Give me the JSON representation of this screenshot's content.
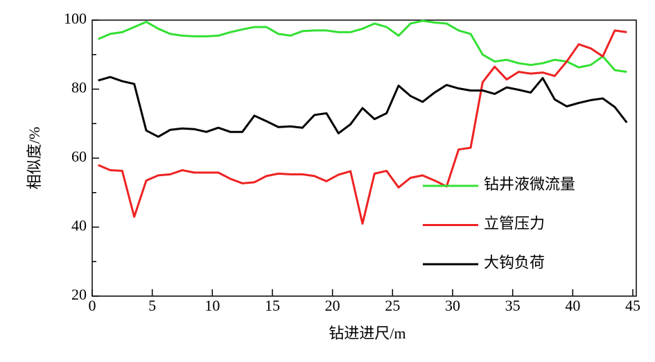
{
  "chart_data": {
    "type": "line",
    "xlabel": "钻进进尺/m",
    "ylabel": "相似度/%",
    "x": [
      0.5,
      1.5,
      2.5,
      3.5,
      4.5,
      5.5,
      6.5,
      7.5,
      8.5,
      9.5,
      10.5,
      11.5,
      12.5,
      13.5,
      14.5,
      15.5,
      16.5,
      17.5,
      18.5,
      19.5,
      20.5,
      21.5,
      22.5,
      23.5,
      24.5,
      25.5,
      26.5,
      27.5,
      28.5,
      29.5,
      30.5,
      31.5,
      32.5,
      33.5,
      34.5,
      35.5,
      36.5,
      37.5,
      38.5,
      39.5,
      40.5,
      41.5,
      42.5,
      43.5,
      44.5
    ],
    "series": [
      {
        "name": "钻井液微流量",
        "color": "#33e033",
        "values": [
          94.5,
          96,
          96.5,
          98,
          99.5,
          97.5,
          96,
          95.5,
          95.3,
          95.3,
          95.5,
          96.5,
          97.3,
          98,
          98,
          96,
          95.5,
          96.8,
          97,
          97,
          96.5,
          96.5,
          97.5,
          99,
          98,
          95.5,
          99,
          99.8,
          99.3,
          99,
          97,
          96,
          90,
          88,
          88.5,
          87.5,
          87,
          87.5,
          88.5,
          88,
          86.3,
          87,
          89.5,
          85.5,
          85
        ]
      },
      {
        "name": "立管压力",
        "color": "#ee2222",
        "values": [
          58,
          56.5,
          56.3,
          43,
          53.5,
          55,
          55.3,
          56.5,
          55.8,
          55.8,
          55.8,
          54,
          52.7,
          53,
          54.8,
          55.5,
          55.3,
          55.3,
          54.8,
          53.3,
          55.2,
          56.2,
          41,
          55.5,
          56.3,
          51.5,
          54.3,
          55,
          53.5,
          51.8,
          62.5,
          63,
          82,
          86.5,
          82.8,
          85,
          84.5,
          84.8,
          83.8,
          88,
          93,
          91.8,
          89.5,
          97,
          96.5
        ]
      },
      {
        "name": "大钩负荷",
        "color": "#000000",
        "values": [
          82.5,
          83.5,
          82.3,
          81.5,
          68,
          66.2,
          68.2,
          68.6,
          68.4,
          67.6,
          68.8,
          67.6,
          67.6,
          72.3,
          70.7,
          69,
          69.2,
          68.8,
          72.5,
          73,
          67.2,
          69.8,
          74.5,
          71.3,
          73,
          81,
          78,
          76.3,
          79,
          81.2,
          80.2,
          79.6,
          79.6,
          78.6,
          80.5,
          79.8,
          79,
          83.2,
          77,
          75,
          76,
          76.8,
          77.3,
          74.8,
          70.3
        ]
      }
    ],
    "xlim": [
      0,
      45
    ],
    "ylim": [
      20,
      100
    ],
    "xticks": [
      0,
      5,
      10,
      15,
      20,
      25,
      30,
      35,
      40,
      45
    ],
    "yticks": [
      20,
      40,
      60,
      80,
      100
    ],
    "yminorticks": [
      30,
      50,
      70,
      90
    ],
    "legend": "center right"
  }
}
